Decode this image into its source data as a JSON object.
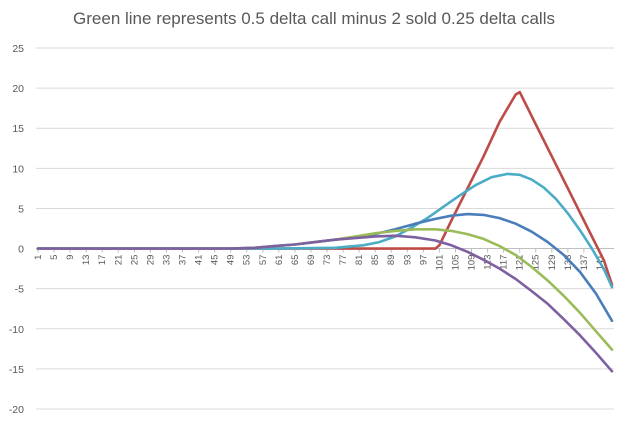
{
  "chart_data": {
    "type": "line",
    "title": "Green line represents 0.5 delta call minus 2 sold 0.25 delta calls",
    "xlabel": "",
    "ylabel": "",
    "ylim": [
      -20,
      25
    ],
    "yticks": [
      25,
      20,
      15,
      10,
      5,
      0,
      -5,
      -10,
      -15,
      -20
    ],
    "xlim": [
      1,
      144
    ],
    "xticks": [
      1,
      5,
      9,
      13,
      17,
      21,
      25,
      29,
      33,
      37,
      41,
      45,
      49,
      53,
      57,
      61,
      65,
      69,
      73,
      77,
      81,
      85,
      89,
      93,
      97,
      101,
      105,
      109,
      113,
      117,
      121,
      125,
      129,
      133,
      137,
      141
    ],
    "grid": true,
    "legend": "none",
    "series": [
      {
        "color": "#be4b48",
        "points": [
          [
            1,
            0
          ],
          [
            100,
            0
          ],
          [
            101,
            0.4
          ],
          [
            104,
            3.5
          ],
          [
            108,
            7.5
          ],
          [
            112,
            11.5
          ],
          [
            116,
            15.8
          ],
          [
            118,
            17.5
          ],
          [
            120,
            19.2
          ],
          [
            121,
            19.5
          ],
          [
            122,
            18.5
          ],
          [
            126,
            14.5
          ],
          [
            130,
            10.5
          ],
          [
            134,
            6.5
          ],
          [
            138,
            2.5
          ],
          [
            142,
            -1.5
          ],
          [
            144,
            -4.5
          ]
        ]
      },
      {
        "color": "#4bacc6",
        "points": [
          [
            1,
            0
          ],
          [
            60,
            0
          ],
          [
            75,
            0.1
          ],
          [
            82,
            0.4
          ],
          [
            86,
            0.8
          ],
          [
            90,
            1.5
          ],
          [
            94,
            2.6
          ],
          [
            98,
            3.8
          ],
          [
            102,
            5.2
          ],
          [
            106,
            6.6
          ],
          [
            110,
            7.9
          ],
          [
            114,
            8.9
          ],
          [
            118,
            9.3
          ],
          [
            121,
            9.2
          ],
          [
            124,
            8.6
          ],
          [
            127,
            7.6
          ],
          [
            130,
            6.2
          ],
          [
            133,
            4.4
          ],
          [
            136,
            2.3
          ],
          [
            139,
            0
          ],
          [
            142,
            -2.6
          ],
          [
            144,
            -4.8
          ]
        ]
      },
      {
        "color": "#4a7ebb",
        "points": [
          [
            1,
            0
          ],
          [
            49,
            0
          ],
          [
            55,
            0.1
          ],
          [
            60,
            0.3
          ],
          [
            65,
            0.5
          ],
          [
            70,
            0.8
          ],
          [
            75,
            1.1
          ],
          [
            80,
            1.4
          ],
          [
            85,
            1.8
          ],
          [
            90,
            2.4
          ],
          [
            95,
            3.1
          ],
          [
            100,
            3.7
          ],
          [
            104,
            4.1
          ],
          [
            108,
            4.3
          ],
          [
            112,
            4.2
          ],
          [
            116,
            3.8
          ],
          [
            120,
            3.1
          ],
          [
            124,
            2.1
          ],
          [
            128,
            0.8
          ],
          [
            132,
            -0.8
          ],
          [
            136,
            -2.9
          ],
          [
            140,
            -5.6
          ],
          [
            144,
            -9
          ]
        ]
      },
      {
        "color": "#9bbb59",
        "points": [
          [
            1,
            0
          ],
          [
            49,
            0
          ],
          [
            55,
            0.1
          ],
          [
            60,
            0.3
          ],
          [
            65,
            0.5
          ],
          [
            70,
            0.8
          ],
          [
            75,
            1.1
          ],
          [
            80,
            1.5
          ],
          [
            85,
            1.9
          ],
          [
            90,
            2.2
          ],
          [
            95,
            2.4
          ],
          [
            100,
            2.4
          ],
          [
            104,
            2.2
          ],
          [
            108,
            1.8
          ],
          [
            112,
            1.2
          ],
          [
            116,
            0.3
          ],
          [
            120,
            -0.8
          ],
          [
            124,
            -2.3
          ],
          [
            128,
            -4
          ],
          [
            132,
            -5.9
          ],
          [
            136,
            -8
          ],
          [
            140,
            -10.3
          ],
          [
            144,
            -12.6
          ]
        ]
      },
      {
        "color": "#7d60a0",
        "points": [
          [
            1,
            0
          ],
          [
            49,
            0
          ],
          [
            55,
            0.1
          ],
          [
            60,
            0.3
          ],
          [
            65,
            0.5
          ],
          [
            70,
            0.8
          ],
          [
            75,
            1.1
          ],
          [
            80,
            1.3
          ],
          [
            85,
            1.5
          ],
          [
            90,
            1.6
          ],
          [
            95,
            1.4
          ],
          [
            100,
            1
          ],
          [
            104,
            0.4
          ],
          [
            108,
            -0.4
          ],
          [
            112,
            -1.4
          ],
          [
            116,
            -2.5
          ],
          [
            120,
            -3.8
          ],
          [
            124,
            -5.3
          ],
          [
            128,
            -6.9
          ],
          [
            132,
            -8.8
          ],
          [
            136,
            -10.8
          ],
          [
            140,
            -13
          ],
          [
            144,
            -15.3
          ]
        ]
      }
    ]
  }
}
